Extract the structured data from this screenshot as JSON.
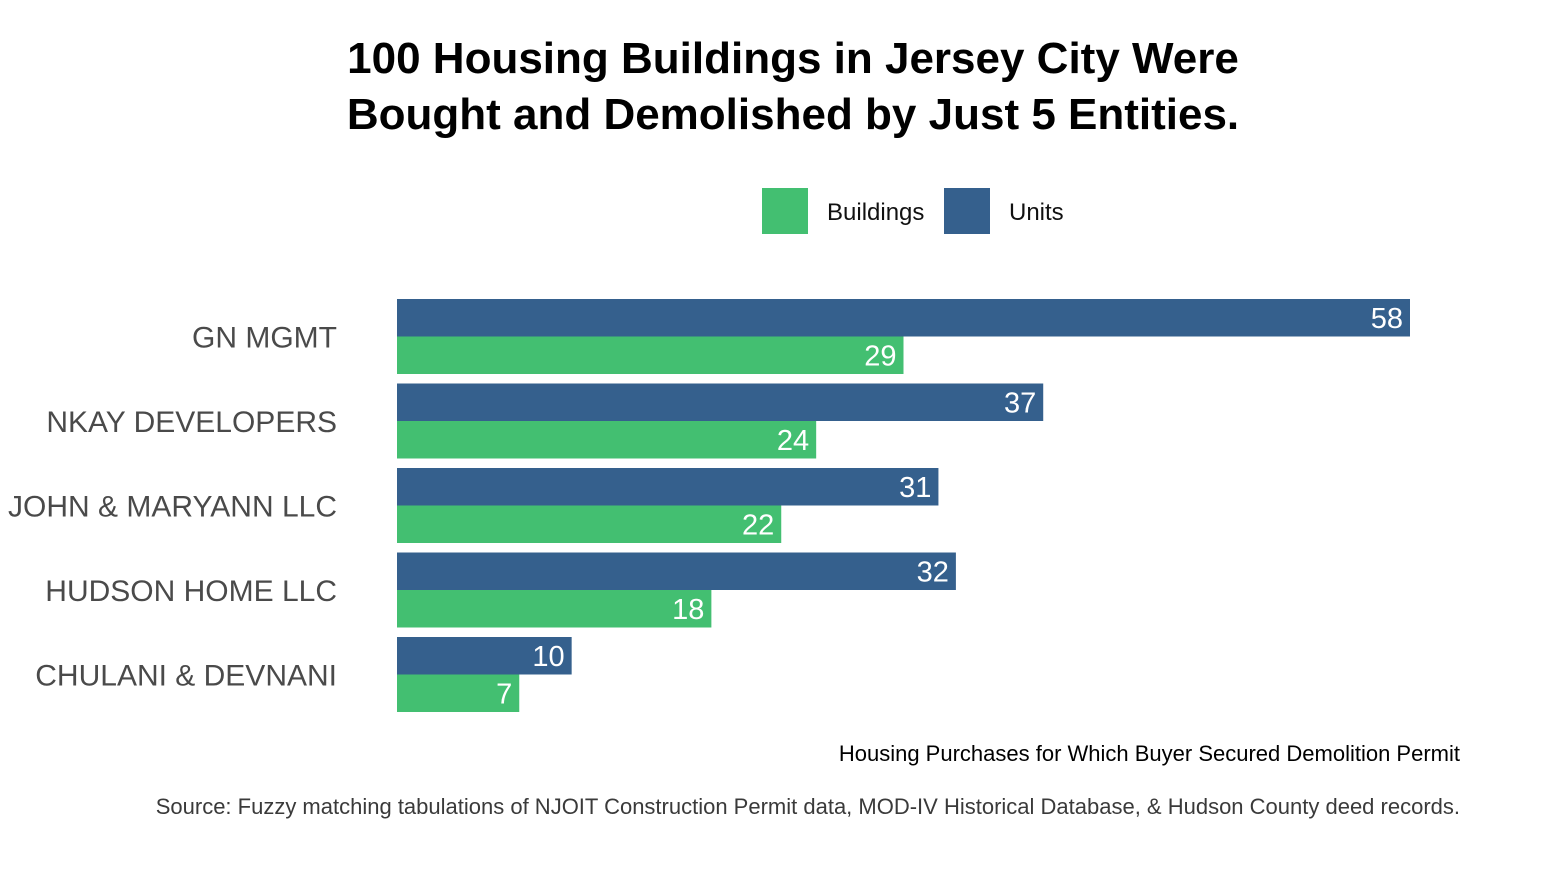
{
  "chart_data": {
    "type": "bar",
    "orientation": "horizontal",
    "title": "100 Housing Buildings in Jersey City Were Bought and Demolished by Just 5 Entities.",
    "title_lines": [
      "100 Housing Buildings in Jersey City Were",
      "Bought and Demolished by Just 5 Entities."
    ],
    "categories": [
      "GN MGMT",
      "NKAY DEVELOPERS",
      "JOHN & MARYANN LLC",
      "HUDSON HOME LLC",
      "CHULANI & DEVNANI"
    ],
    "series": [
      {
        "name": "Units",
        "color": "#35608d",
        "values": [
          58,
          37,
          31,
          32,
          10
        ]
      },
      {
        "name": "Buildings",
        "color": "#43bf71",
        "values": [
          29,
          24,
          22,
          18,
          7
        ]
      }
    ],
    "legend": [
      {
        "name": "Buildings",
        "color": "#43bf71"
      },
      {
        "name": "Units",
        "color": "#35608d"
      }
    ],
    "legend_position": "top-right",
    "xlim": [
      0,
      58
    ],
    "grid": false,
    "xlabel": "Housing Purchases for Which Buyer Secured Demolition Permit",
    "ylabel": "",
    "source": "Source: Fuzzy matching tabulations of NJOIT Construction Permit data, MOD-IV Historical Database, & Hudson County deed records."
  }
}
